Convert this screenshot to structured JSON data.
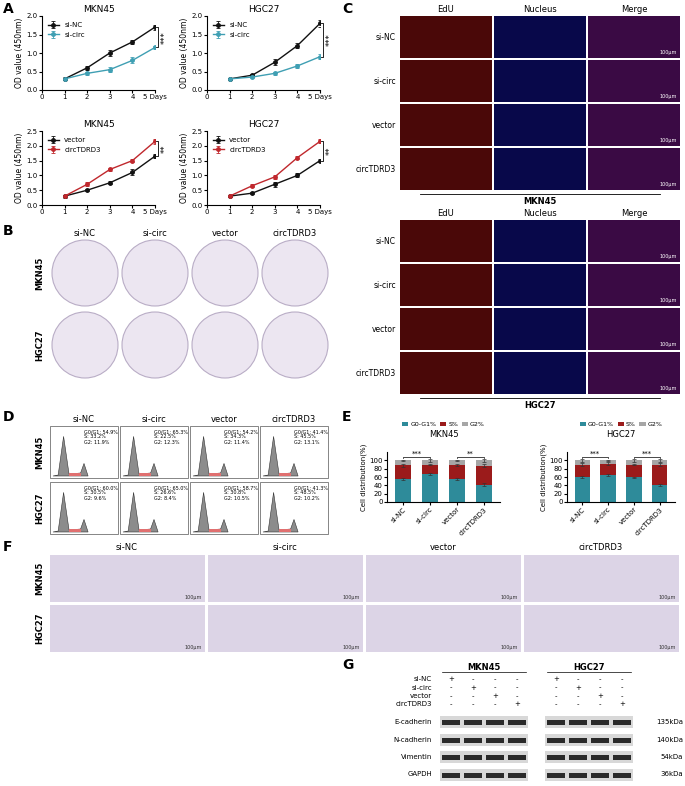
{
  "panel_labels": [
    "A",
    "B",
    "C",
    "D",
    "E",
    "F",
    "G"
  ],
  "groups": [
    "si-NC",
    "si-circ",
    "vector",
    "circTDRD3"
  ],
  "cell_lines": [
    "MKN45",
    "HGC27"
  ],
  "chart_data": [
    {
      "type": "line",
      "title": "MKN45",
      "ylabel": "OD value (450nm)",
      "x": [
        1,
        2,
        3,
        4,
        5
      ],
      "xlim": [
        0,
        5
      ],
      "xticks": [
        0,
        1,
        2,
        3,
        4,
        {
          "value": 5,
          "label": "5 Days"
        }
      ],
      "ylim": [
        0,
        2.0
      ],
      "yticks": [
        {
          "value": 0,
          "label": "0.0"
        },
        0.5,
        1.0,
        1.5,
        2.0
      ],
      "legend": "upper left",
      "significance": "***",
      "series": [
        {
          "name": "si-NC",
          "color": "#111111",
          "marker": "circle",
          "values": [
            0.3,
            0.6,
            1.0,
            1.3,
            1.7
          ],
          "errors": [
            0.04,
            0.05,
            0.08,
            0.05,
            0.07
          ]
        },
        {
          "name": "si-circ",
          "color": "#3f9fb3",
          "marker": "circle",
          "values": [
            0.3,
            0.45,
            0.55,
            0.8,
            1.15
          ],
          "errors": [
            0.03,
            0.05,
            0.06,
            0.08,
            0.05
          ]
        }
      ]
    },
    {
      "type": "line",
      "title": "HGC27",
      "ylabel": "OD value (450nm)",
      "x": [
        1,
        2,
        3,
        4,
        5
      ],
      "xlim": [
        0,
        5
      ],
      "xticks": [
        0,
        1,
        2,
        3,
        4,
        {
          "value": 5,
          "label": "5 Days"
        }
      ],
      "ylim": [
        0,
        2.0
      ],
      "yticks": [
        {
          "value": 0,
          "label": "0.0"
        },
        0.5,
        1.0,
        1.5,
        2.0
      ],
      "legend": "upper left",
      "significance": "***",
      "series": [
        {
          "name": "si-NC",
          "color": "#111111",
          "marker": "circle",
          "values": [
            0.3,
            0.4,
            0.75,
            1.2,
            1.8
          ],
          "errors": [
            0.02,
            0.04,
            0.08,
            0.07,
            0.1
          ]
        },
        {
          "name": "si-circ",
          "color": "#3f9fb3",
          "marker": "circle",
          "values": [
            0.3,
            0.35,
            0.45,
            0.65,
            0.9
          ],
          "errors": [
            0.02,
            0.03,
            0.05,
            0.05,
            0.06
          ]
        }
      ]
    },
    {
      "type": "line",
      "title": "MKN45",
      "ylabel": "OD value (450nm)",
      "x": [
        1,
        2,
        3,
        4,
        5
      ],
      "xlim": [
        0,
        5
      ],
      "xticks": [
        0,
        1,
        2,
        3,
        4,
        {
          "value": 5,
          "label": "5 Days"
        }
      ],
      "ylim": [
        0,
        2.5
      ],
      "yticks": [
        {
          "value": 0,
          "label": "0.0"
        },
        0.5,
        1.0,
        1.5,
        2.0,
        2.5
      ],
      "legend": "upper left",
      "significance": "**",
      "series": [
        {
          "name": "vector",
          "color": "#111111",
          "marker": "circle",
          "values": [
            0.3,
            0.5,
            0.75,
            1.1,
            1.65
          ],
          "errors": [
            0.05,
            0.04,
            0.05,
            0.1,
            0.06
          ]
        },
        {
          "name": "circTDRD3",
          "color": "#c0282d",
          "marker": "circle",
          "values": [
            0.3,
            0.7,
            1.2,
            1.5,
            2.15
          ],
          "errors": [
            0.03,
            0.07,
            0.06,
            0.05,
            0.08
          ]
        }
      ]
    },
    {
      "type": "line",
      "title": "HGC27",
      "ylabel": "OD value (450nm)",
      "x": [
        1,
        2,
        3,
        4,
        5
      ],
      "xlim": [
        0,
        5
      ],
      "xticks": [
        0,
        1,
        2,
        3,
        4,
        {
          "value": 5,
          "label": "5 Days"
        }
      ],
      "ylim": [
        0,
        2.5
      ],
      "yticks": [
        {
          "value": 0,
          "label": "0.0"
        },
        0.5,
        1.0,
        1.5,
        2.0,
        2.5
      ],
      "legend": "upper left",
      "significance": "**",
      "series": [
        {
          "name": "vector",
          "color": "#111111",
          "marker": "circle",
          "values": [
            0.3,
            0.4,
            0.7,
            1.0,
            1.5
          ],
          "errors": [
            0.02,
            0.04,
            0.09,
            0.07,
            0.05
          ]
        },
        {
          "name": "circTDRD3",
          "color": "#c0282d",
          "marker": "circle",
          "values": [
            0.3,
            0.65,
            0.95,
            1.6,
            2.15
          ],
          "errors": [
            0.02,
            0.05,
            0.06,
            0.05,
            0.07
          ]
        }
      ]
    },
    {
      "type": "bar",
      "stacked": true,
      "title": "MKN45",
      "ylabel": "Cell distribution(%)",
      "categories": [
        "si-NC",
        "si-circ",
        "vector",
        "circTDRD3"
      ],
      "ylim": [
        0,
        120
      ],
      "yticks": [
        0,
        20,
        40,
        60,
        80,
        100
      ],
      "legend": "upper center",
      "significance": [
        "***",
        "**"
      ],
      "series": [
        {
          "name": "G0-G1%",
          "color": "#2e8b9a",
          "values": [
            55,
            67,
            55,
            42
          ],
          "errors": [
            2,
            3,
            2,
            3
          ]
        },
        {
          "name": "S%",
          "color": "#9b1b1b",
          "values": [
            33,
            23,
            34,
            45
          ],
          "errors": [
            3,
            2,
            3,
            4
          ]
        },
        {
          "name": "G2%",
          "color": "#a6a6a6",
          "values": [
            12,
            10,
            11,
            13
          ],
          "errors": [
            2,
            3,
            2,
            3
          ]
        }
      ]
    },
    {
      "type": "bar",
      "stacked": true,
      "title": "HGC27",
      "ylabel": "Cell distribution(%)",
      "categories": [
        "si-NC",
        "si-circ",
        "vector",
        "circTDRD3"
      ],
      "ylim": [
        0,
        120
      ],
      "yticks": [
        0,
        20,
        40,
        60,
        80,
        100
      ],
      "legend": "upper center",
      "significance": [
        "***",
        "***"
      ],
      "series": [
        {
          "name": "G0-G1%",
          "color": "#2e8b9a",
          "values": [
            60,
            65,
            59,
            41
          ],
          "errors": [
            3,
            2,
            2,
            3
          ]
        },
        {
          "name": "S%",
          "color": "#9b1b1b",
          "values": [
            30,
            27,
            31,
            49
          ],
          "errors": [
            3,
            3,
            2,
            4
          ]
        },
        {
          "name": "G2%",
          "color": "#a6a6a6",
          "values": [
            10,
            8,
            10,
            10
          ],
          "errors": [
            3,
            2,
            3,
            4
          ]
        }
      ]
    }
  ],
  "edu": {
    "columns": [
      "EdU",
      "Nucleus",
      "Merge"
    ],
    "scale_bar": "100μm"
  },
  "flow": [
    [
      [
        "G0/G1: 54.9%",
        "S: 33.2%",
        "G2: 11.9%"
      ],
      [
        "G0/G1: 65.3%",
        "S: 22.5%",
        "G2: 12.3%"
      ],
      [
        "G0/G1: 54.2%",
        "S: 34.3%",
        "G2: 11.4%"
      ],
      [
        "G0/G1: 41.4%",
        "S: 45.5%",
        "G2: 13.1%"
      ]
    ],
    [
      [
        "G0/G1: 60.0%",
        "S: 30.5%",
        "G2: 9.6%"
      ],
      [
        "G0/G1: 65.0%",
        "S: 26.6%",
        "G2: 8.4%"
      ],
      [
        "G0/G1: 58.7%",
        "S: 30.8%",
        "G2: 10.5%"
      ],
      [
        "G0/G1: 41.3%",
        "S: 48.5%",
        "G2: 10.2%"
      ]
    ]
  ],
  "transwell": {
    "scale_bar": "100μm"
  },
  "western": {
    "signs": [
      [
        "+",
        "-",
        "-",
        "-"
      ],
      [
        "-",
        "+",
        "-",
        "-"
      ],
      [
        "-",
        "-",
        "+",
        "-"
      ],
      [
        "-",
        "-",
        "-",
        "+"
      ]
    ],
    "proteins": [
      {
        "name": "E-cadherin",
        "size": "135kDa"
      },
      {
        "name": "N-cadherin",
        "size": "140kDa"
      },
      {
        "name": "Vimentin",
        "size": "54kDa"
      },
      {
        "name": "GAPDH",
        "size": "36kDa"
      }
    ]
  }
}
